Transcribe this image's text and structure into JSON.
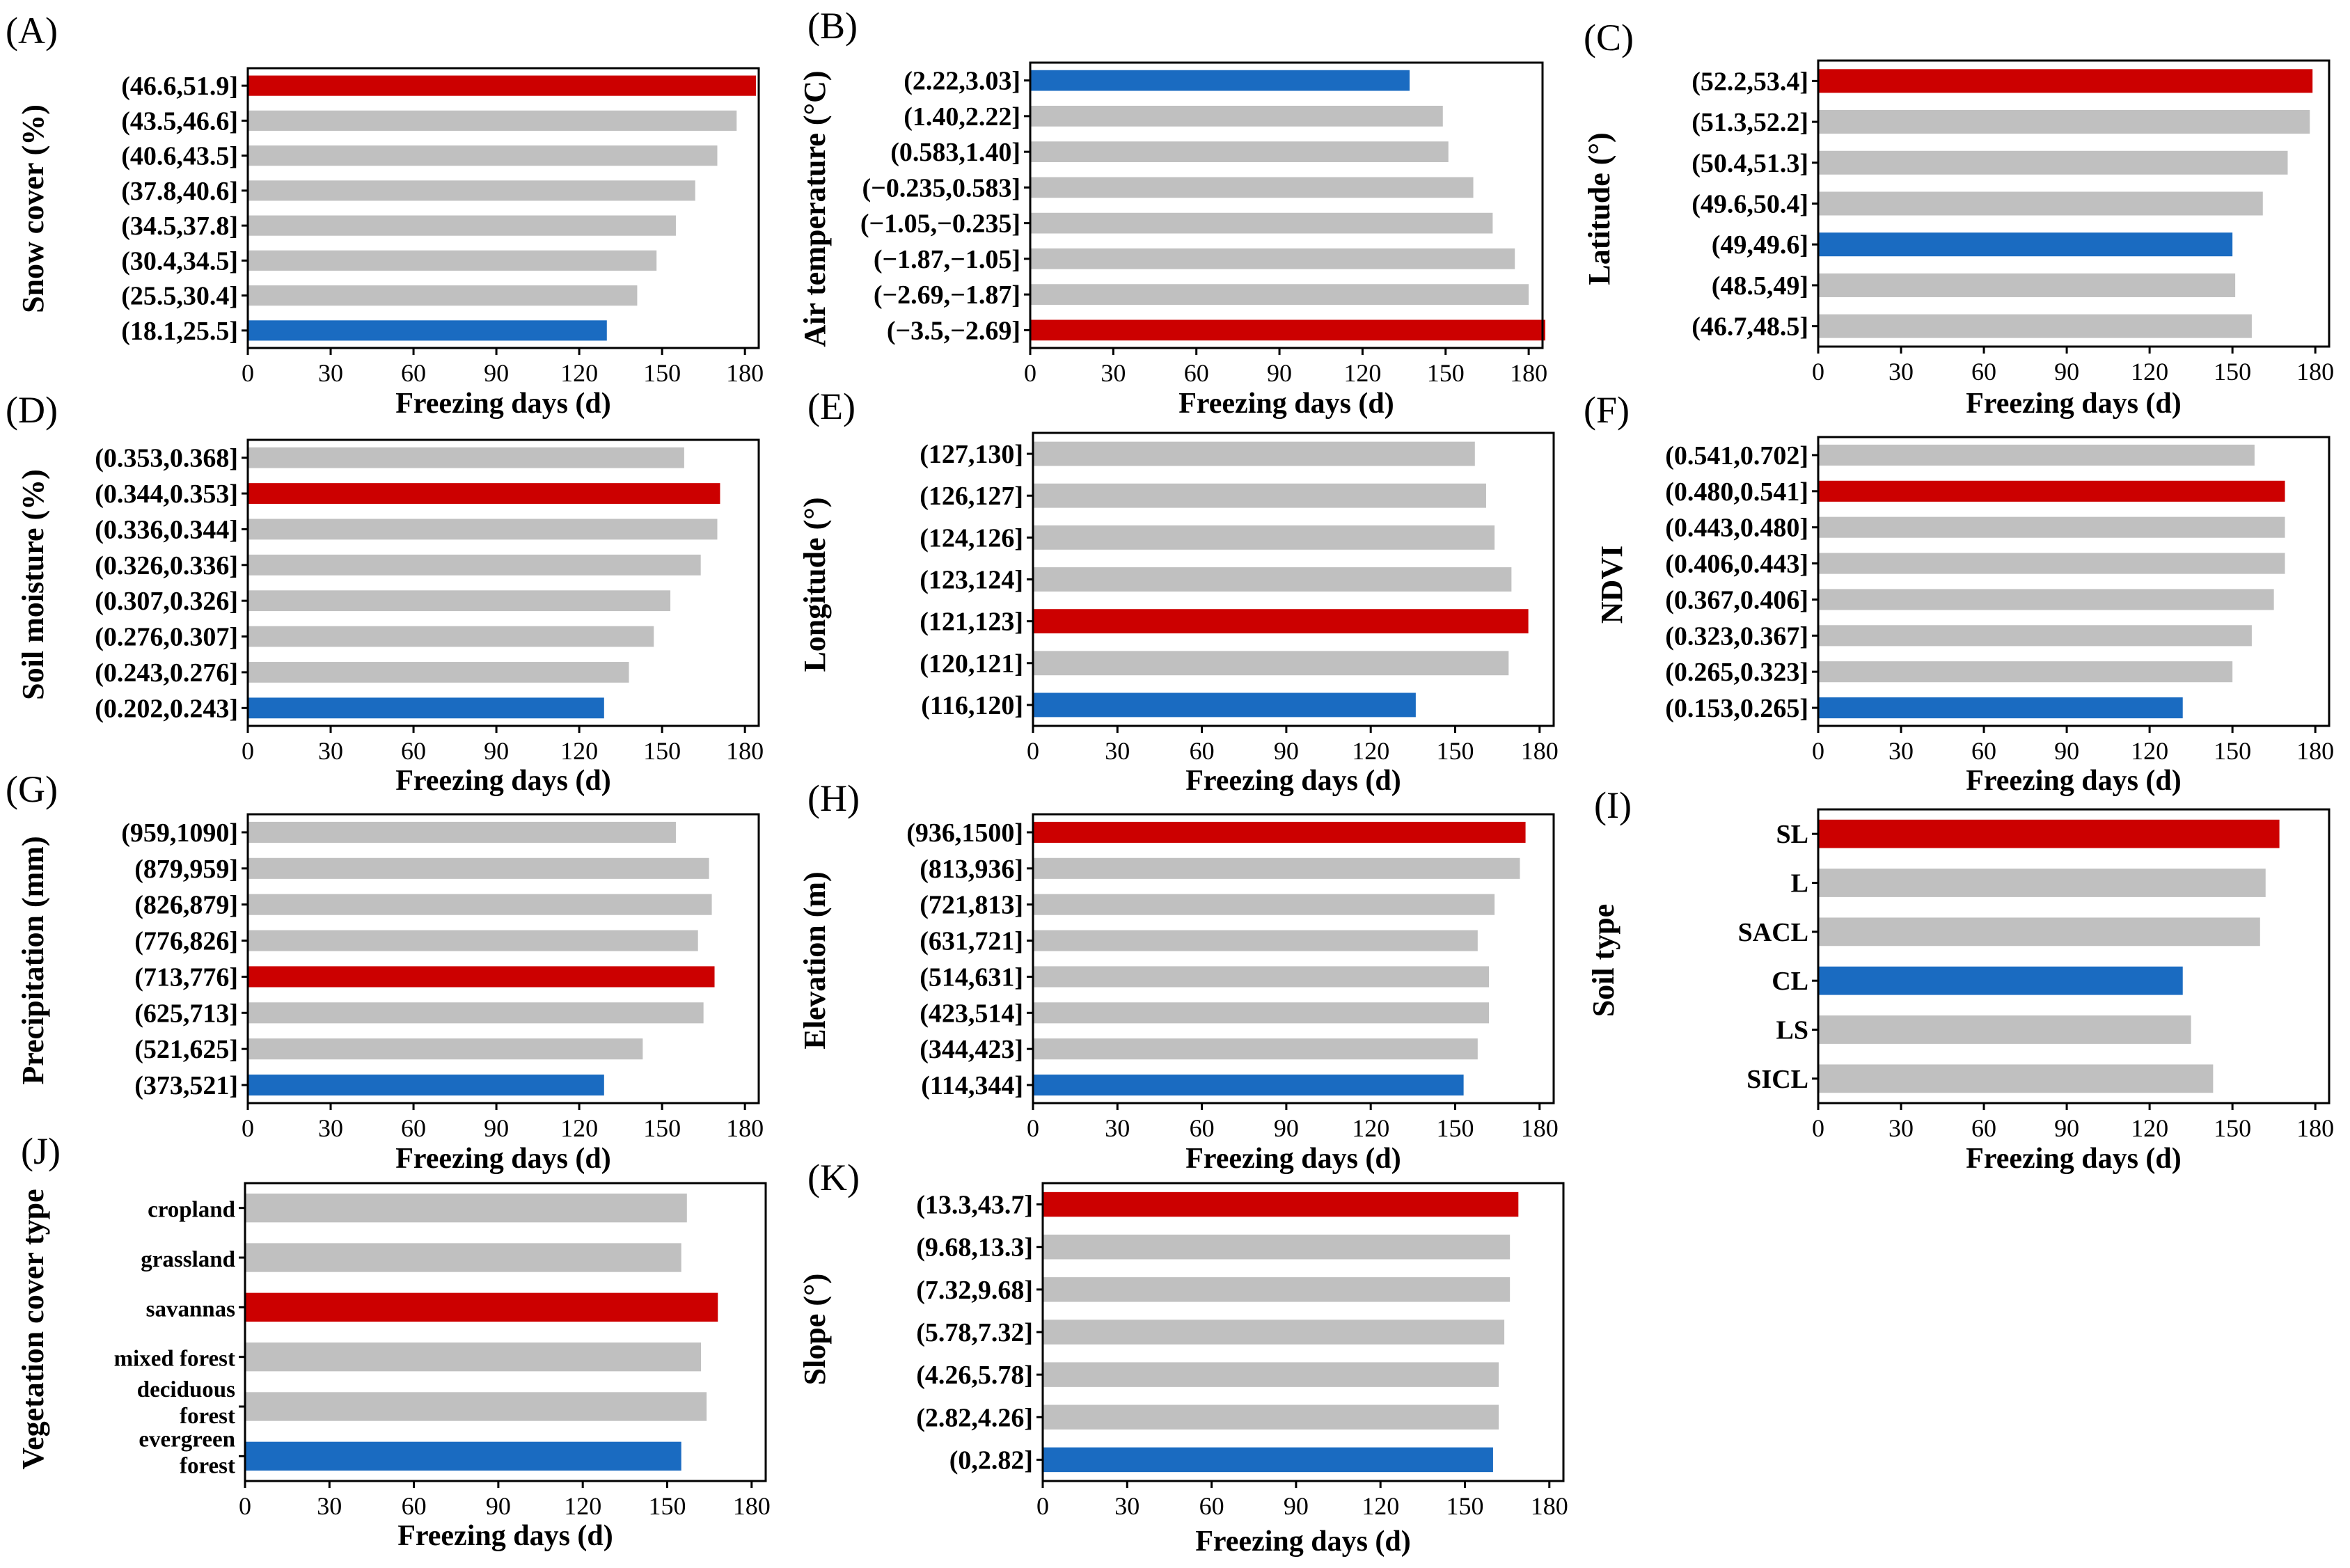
{
  "figure": {
    "axis_max": 185,
    "ticks": [
      0,
      30,
      60,
      90,
      120,
      150,
      180
    ]
  },
  "colors": {
    "max": "#cc0000",
    "min": "#1a6bc1",
    "other": "#c0c0c0"
  },
  "chart_data": [
    {
      "id": "A",
      "letter": "(A)",
      "type": "bar",
      "orientation": "horizontal",
      "ylabel": "Snow cover (%)",
      "xlabel": "Freezing days (d)",
      "categories": [
        "(46.6,51.9]",
        "(43.5,46.6]",
        "(40.6,43.5]",
        "(37.8,40.6]",
        "(34.5,37.8]",
        "(30.4,34.5]",
        "(25.5,30.4]",
        "(18.1,25.5]"
      ],
      "values": [
        184,
        177,
        170,
        162,
        155,
        148,
        141,
        130
      ],
      "highlight": [
        "max",
        "other",
        "other",
        "other",
        "other",
        "other",
        "other",
        "min"
      ]
    },
    {
      "id": "B",
      "letter": "(B)",
      "type": "bar",
      "orientation": "horizontal",
      "ylabel": "Air temperature (°C)",
      "xlabel": "Freezing days (d)",
      "categories": [
        "(2.22,3.03]",
        "(1.40,2.22]",
        "(0.583,1.40]",
        "(−0.235,0.583]",
        "(−1.05,−0.235]",
        "(−1.87,−1.05]",
        "(−2.69,−1.87]",
        "(−3.5,−2.69]"
      ],
      "values": [
        137,
        149,
        151,
        160,
        167,
        175,
        180,
        186
      ],
      "highlight": [
        "min",
        "other",
        "other",
        "other",
        "other",
        "other",
        "other",
        "max"
      ]
    },
    {
      "id": "C",
      "letter": "(C)",
      "type": "bar",
      "orientation": "horizontal",
      "ylabel": "Latitude (°)",
      "xlabel": "Freezing days (d)",
      "categories": [
        "(52.2,53.4]",
        "(51.3,52.2]",
        "(50.4,51.3]",
        "(49.6,50.4]",
        "(49,49.6]",
        "(48.5,49]",
        "(46.7,48.5]"
      ],
      "values": [
        179,
        178,
        170,
        161,
        150,
        151,
        157
      ],
      "highlight": [
        "max",
        "other",
        "other",
        "other",
        "min",
        "other",
        "other"
      ]
    },
    {
      "id": "D",
      "letter": "(D)",
      "type": "bar",
      "orientation": "horizontal",
      "ylabel": "Soil moisture (%)",
      "xlabel": "Freezing days (d)",
      "categories": [
        "(0.353,0.368]",
        "(0.344,0.353]",
        "(0.336,0.344]",
        "(0.326,0.336]",
        "(0.307,0.326]",
        "(0.276,0.307]",
        "(0.243,0.276]",
        "(0.202,0.243]"
      ],
      "values": [
        158,
        171,
        170,
        164,
        153,
        147,
        138,
        129
      ],
      "highlight": [
        "other",
        "max",
        "other",
        "other",
        "other",
        "other",
        "other",
        "min"
      ]
    },
    {
      "id": "E",
      "letter": "(E)",
      "type": "bar",
      "orientation": "horizontal",
      "ylabel": "Longitude (°)",
      "xlabel": "Freezing days (d)",
      "categories": [
        "(127,130]",
        "(126,127]",
        "(124,126]",
        "(123,124]",
        "(121,123]",
        "(120,121]",
        "(116,120]"
      ],
      "values": [
        157,
        161,
        164,
        170,
        176,
        169,
        136
      ],
      "highlight": [
        "other",
        "other",
        "other",
        "other",
        "max",
        "other",
        "min"
      ]
    },
    {
      "id": "F",
      "letter": "(F)",
      "type": "bar",
      "orientation": "horizontal",
      "ylabel": "NDVI",
      "xlabel": "Freezing days (d)",
      "categories": [
        "(0.541,0.702]",
        "(0.480,0.541]",
        "(0.443,0.480]",
        "(0.406,0.443]",
        "(0.367,0.406]",
        "(0.323,0.367]",
        "(0.265,0.323]",
        "(0.153,0.265]"
      ],
      "values": [
        158,
        169,
        169,
        169,
        165,
        157,
        150,
        132
      ],
      "highlight": [
        "other",
        "max",
        "other",
        "other",
        "other",
        "other",
        "other",
        "min"
      ]
    },
    {
      "id": "G",
      "letter": "(G)",
      "type": "bar",
      "orientation": "horizontal",
      "ylabel": "Precipitation (mm)",
      "xlabel": "Freezing days (d)",
      "categories": [
        "(959,1090]",
        "(879,959]",
        "(826,879]",
        "(776,826]",
        "(713,776]",
        "(625,713]",
        "(521,625]",
        "(373,521]"
      ],
      "values": [
        155,
        167,
        168,
        163,
        169,
        165,
        143,
        129
      ],
      "highlight": [
        "other",
        "other",
        "other",
        "other",
        "max",
        "other",
        "other",
        "min"
      ]
    },
    {
      "id": "H",
      "letter": "(H)",
      "type": "bar",
      "orientation": "horizontal",
      "ylabel": "Elevation (m)",
      "xlabel": "Freezing days (d)",
      "categories": [
        "(936,1500]",
        "(813,936]",
        "(721,813]",
        "(631,721]",
        "(514,631]",
        "(423,514]",
        "(344,423]",
        "(114,344]"
      ],
      "values": [
        175,
        173,
        164,
        158,
        162,
        162,
        158,
        153
      ],
      "highlight": [
        "max",
        "other",
        "other",
        "other",
        "other",
        "other",
        "other",
        "min"
      ]
    },
    {
      "id": "I",
      "letter": "(I)",
      "type": "bar",
      "orientation": "horizontal",
      "ylabel": "Soil type",
      "xlabel": "Freezing days (d)",
      "categories": [
        "SL",
        "L",
        "SACL",
        "CL",
        "LS",
        "SICL"
      ],
      "values": [
        167,
        162,
        160,
        132,
        135,
        143
      ],
      "highlight": [
        "max",
        "other",
        "other",
        "min",
        "other",
        "other"
      ]
    },
    {
      "id": "J",
      "letter": "(J)",
      "type": "bar",
      "orientation": "horizontal",
      "ylabel": "Vegetation cover type",
      "xlabel": "Freezing days (d)",
      "categories": [
        "cropland",
        "grassland",
        "savannas",
        "mixed forest",
        "deciduous forest",
        "evergreen forest"
      ],
      "values": [
        157,
        155,
        168,
        162,
        164,
        155
      ],
      "highlight": [
        "other",
        "other",
        "max",
        "other",
        "other",
        "min"
      ]
    },
    {
      "id": "K",
      "letter": "(K)",
      "type": "bar",
      "orientation": "horizontal",
      "ylabel": "Slope (°)",
      "xlabel": "Freezing days (d)",
      "categories": [
        "(13.3,43.7]",
        "(9.68,13.3]",
        "(7.32,9.68]",
        "(5.78,7.32]",
        "(4.26,5.78]",
        "(2.82,4.26]",
        "(0,2.82]"
      ],
      "values": [
        169,
        166,
        166,
        164,
        162,
        162,
        160
      ],
      "highlight": [
        "max",
        "other",
        "other",
        "other",
        "other",
        "other",
        "min"
      ]
    }
  ]
}
